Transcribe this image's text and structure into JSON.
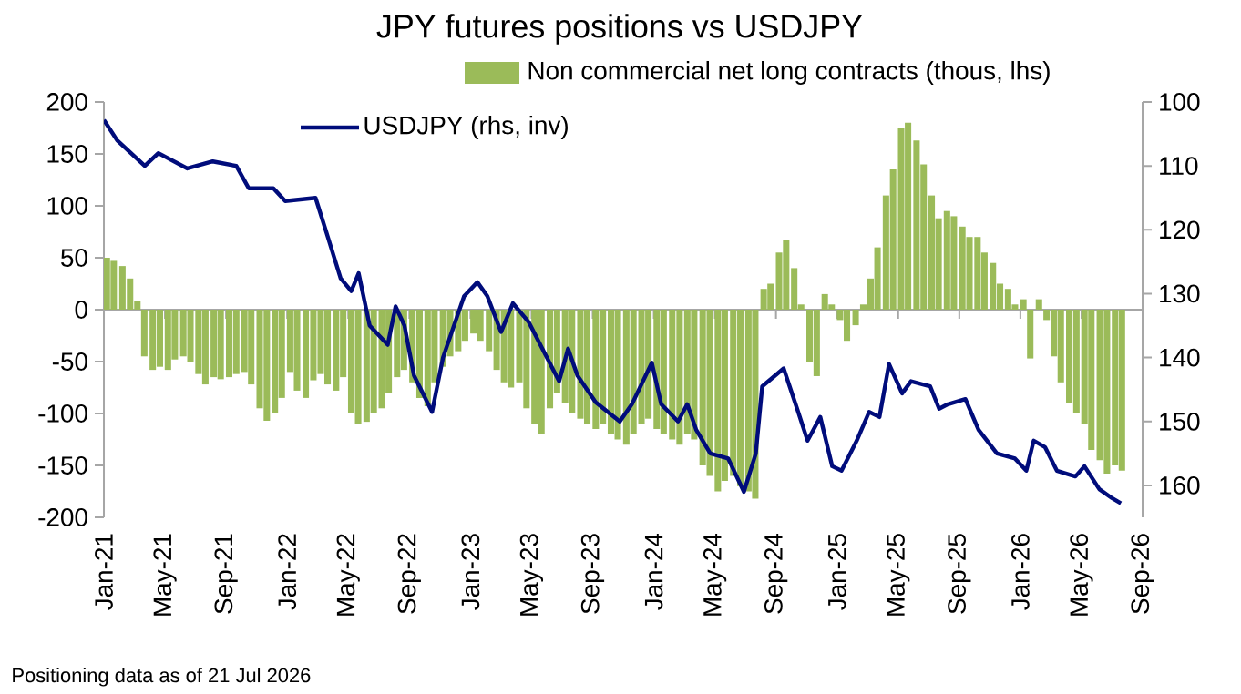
{
  "chart_data": {
    "type": "bar",
    "title": "JPY futures positions  vs USDJPY",
    "annotations": [
      "Positioning data as of 21 Jul 2026"
    ],
    "legend": "top",
    "xlim": [
      "2021-01",
      "2026-09"
    ],
    "xticks": [
      {
        "value": "2021-01",
        "label": "Jan-21"
      },
      {
        "value": "2021-05",
        "label": "May-21"
      },
      {
        "value": "2021-09",
        "label": "Sep-21"
      },
      {
        "value": "2022-01",
        "label": "Jan-22"
      },
      {
        "value": "2022-05",
        "label": "May-22"
      },
      {
        "value": "2022-09",
        "label": "Sep-22"
      },
      {
        "value": "2023-01",
        "label": "Jan-23"
      },
      {
        "value": "2023-05",
        "label": "May-23"
      },
      {
        "value": "2023-09",
        "label": "Sep-23"
      },
      {
        "value": "2024-01",
        "label": "Jan-24"
      },
      {
        "value": "2024-05",
        "label": "May-24"
      },
      {
        "value": "2024-09",
        "label": "Sep-24"
      },
      {
        "value": "2025-01",
        "label": "Jan-25"
      },
      {
        "value": "2025-05",
        "label": "May-25"
      },
      {
        "value": "2025-09",
        "label": "Sep-25"
      },
      {
        "value": "2026-01",
        "label": "Jan-26"
      },
      {
        "value": "2026-05",
        "label": "May-26"
      },
      {
        "value": "2026-09",
        "label": "Sep-26"
      }
    ],
    "ylim": [
      -200,
      200
    ],
    "yticks": [
      -200,
      -150,
      -100,
      -50,
      0,
      50,
      100,
      150,
      200
    ],
    "y2lim": [
      165,
      100
    ],
    "y2ticks": [
      100,
      110,
      120,
      130,
      140,
      150,
      160
    ],
    "series": [
      {
        "name": "Non commercial net long contracts (thous, lhs)",
        "color": "#9bbb59",
        "x": [
          "2021-01-07",
          "2021-01-21",
          "2021-02-07",
          "2021-02-21",
          "2021-03-07",
          "2021-03-21",
          "2021-04-07",
          "2021-04-21",
          "2021-05-07",
          "2021-05-21",
          "2021-06-07",
          "2021-06-21",
          "2021-07-07",
          "2021-07-21",
          "2021-08-07",
          "2021-08-21",
          "2021-09-07",
          "2021-09-21",
          "2021-10-07",
          "2021-10-21",
          "2021-11-07",
          "2021-11-21",
          "2021-12-07",
          "2021-12-21",
          "2022-01-07",
          "2022-01-21",
          "2022-02-07",
          "2022-02-21",
          "2022-03-07",
          "2022-03-21",
          "2022-04-07",
          "2022-04-21",
          "2022-05-07",
          "2022-05-21",
          "2022-06-07",
          "2022-06-21",
          "2022-07-07",
          "2022-07-21",
          "2022-08-07",
          "2022-08-21",
          "2022-09-07",
          "2022-09-21",
          "2022-10-07",
          "2022-10-21",
          "2022-11-07",
          "2022-11-21",
          "2022-12-07",
          "2022-12-21",
          "2023-01-07",
          "2023-01-21",
          "2023-02-07",
          "2023-02-21",
          "2023-03-07",
          "2023-03-21",
          "2023-04-07",
          "2023-04-21",
          "2023-05-07",
          "2023-05-21",
          "2023-06-07",
          "2023-06-21",
          "2023-07-07",
          "2023-07-21",
          "2023-08-07",
          "2023-08-21",
          "2023-09-07",
          "2023-09-21",
          "2023-10-07",
          "2023-10-21",
          "2023-11-07",
          "2023-11-21",
          "2023-12-07",
          "2023-12-21",
          "2024-01-07",
          "2024-01-21",
          "2024-02-07",
          "2024-02-21",
          "2024-03-07",
          "2024-03-21",
          "2024-04-07",
          "2024-04-21",
          "2024-05-07",
          "2024-05-21",
          "2024-06-07",
          "2024-06-21",
          "2024-07-07",
          "2024-07-21",
          "2024-08-07",
          "2024-08-21",
          "2024-09-07",
          "2024-09-21",
          "2024-10-07",
          "2024-10-21",
          "2024-11-07",
          "2024-11-21",
          "2024-12-07",
          "2024-12-21",
          "2025-01-07",
          "2025-01-21",
          "2025-02-07",
          "2025-02-21",
          "2025-03-07",
          "2025-03-21",
          "2025-04-07",
          "2025-04-21",
          "2025-05-07",
          "2025-05-21",
          "2025-06-07",
          "2025-06-21",
          "2025-07-07",
          "2025-07-21",
          "2025-08-07",
          "2025-08-21",
          "2025-09-07",
          "2025-09-21",
          "2025-10-07",
          "2025-10-21",
          "2025-11-07",
          "2025-11-21",
          "2025-12-07",
          "2025-12-21",
          "2026-01-07",
          "2026-01-21",
          "2026-02-07",
          "2026-02-21",
          "2026-03-07",
          "2026-03-21",
          "2026-04-07",
          "2026-04-21",
          "2026-05-07",
          "2026-05-21",
          "2026-06-07",
          "2026-06-21",
          "2026-07-07",
          "2026-07-21"
        ],
        "values": [
          50,
          47,
          42,
          30,
          8,
          -45,
          -58,
          -55,
          -58,
          -48,
          -45,
          -50,
          -62,
          -72,
          -65,
          -67,
          -65,
          -62,
          -60,
          -72,
          -95,
          -107,
          -100,
          -85,
          -60,
          -78,
          -85,
          -68,
          -62,
          -72,
          -78,
          -65,
          -100,
          -110,
          -108,
          -100,
          -95,
          -80,
          -65,
          -58,
          -70,
          -85,
          -93,
          -70,
          -55,
          -45,
          -40,
          -30,
          -23,
          -30,
          -40,
          -58,
          -70,
          -75,
          -70,
          -95,
          -110,
          -120,
          -95,
          -80,
          -90,
          -100,
          -105,
          -110,
          -115,
          -110,
          -120,
          -125,
          -130,
          -120,
          -110,
          -105,
          -115,
          -120,
          -125,
          -130,
          -120,
          -125,
          -150,
          -160,
          -175,
          -165,
          -160,
          -170,
          -175,
          -182,
          20,
          25,
          55,
          67,
          40,
          5,
          -50,
          -64,
          15,
          5,
          -10,
          -30,
          -15,
          5,
          30,
          60,
          110,
          135,
          175,
          180,
          163,
          140,
          110,
          88,
          95,
          90,
          80,
          70,
          70,
          55,
          45,
          25,
          20,
          5,
          10,
          -47,
          10,
          -10,
          -45,
          -70,
          -90,
          -100,
          -110,
          -135,
          -145,
          -158,
          -150,
          -155
        ]
      },
      {
        "name": "USDJPY (rhs, inv)",
        "type": "line",
        "axis": "y2",
        "color": "#000c7b",
        "x": [
          "2021-01-01",
          "2021-01-28",
          "2021-03-22",
          "2021-04-18",
          "2021-06-15",
          "2021-08-05",
          "2021-09-21",
          "2021-10-16",
          "2021-12-04",
          "2021-12-28",
          "2022-02-25",
          "2022-03-21",
          "2022-04-16",
          "2022-05-07",
          "2022-05-22",
          "2022-06-13",
          "2022-07-19",
          "2022-08-04",
          "2022-08-22",
          "2022-09-10",
          "2022-10-16",
          "2022-11-07",
          "2022-12-19",
          "2023-01-15",
          "2023-02-04",
          "2023-03-01",
          "2023-03-25",
          "2023-04-25",
          "2023-06-01",
          "2023-06-25",
          "2023-07-13",
          "2023-08-01",
          "2023-09-07",
          "2023-10-25",
          "2023-11-18",
          "2023-12-28",
          "2024-01-16",
          "2024-02-18",
          "2024-03-07",
          "2024-03-25",
          "2024-04-22",
          "2024-05-28",
          "2024-06-28",
          "2024-07-22",
          "2024-08-04",
          "2024-09-16",
          "2024-10-15",
          "2024-11-03",
          "2024-11-28",
          "2024-12-22",
          "2025-01-10",
          "2025-02-09",
          "2025-03-04",
          "2025-03-25",
          "2025-04-13",
          "2025-05-09",
          "2025-05-27",
          "2025-07-04",
          "2025-07-22",
          "2025-08-09",
          "2025-09-13",
          "2025-10-09",
          "2025-11-15",
          "2025-12-21",
          "2026-01-13",
          "2026-01-28",
          "2026-02-18",
          "2026-03-13",
          "2026-04-19",
          "2026-05-07",
          "2026-06-06",
          "2026-07-01",
          "2026-07-19"
        ],
        "values": [
          102.8,
          106,
          110,
          108,
          110.4,
          109.3,
          110,
          113.5,
          113.5,
          115.5,
          115,
          121,
          127.6,
          129.6,
          126.8,
          135,
          138,
          132,
          135,
          142.8,
          148.5,
          140,
          130.4,
          128.2,
          130.4,
          136,
          131.5,
          134.4,
          140,
          143.7,
          138.6,
          142.8,
          147,
          150,
          147.3,
          140.8,
          147.3,
          150,
          147.3,
          151.3,
          155,
          155.8,
          161,
          155,
          144.5,
          141.7,
          148.5,
          153,
          149.3,
          157,
          157.7,
          153,
          148.5,
          149.3,
          141,
          145.6,
          143.7,
          144.5,
          148,
          147.3,
          146.5,
          151.3,
          155,
          155.8,
          157.7,
          153,
          154,
          157.7,
          158.6,
          157,
          160.6,
          162,
          162.8
        ]
      }
    ]
  }
}
